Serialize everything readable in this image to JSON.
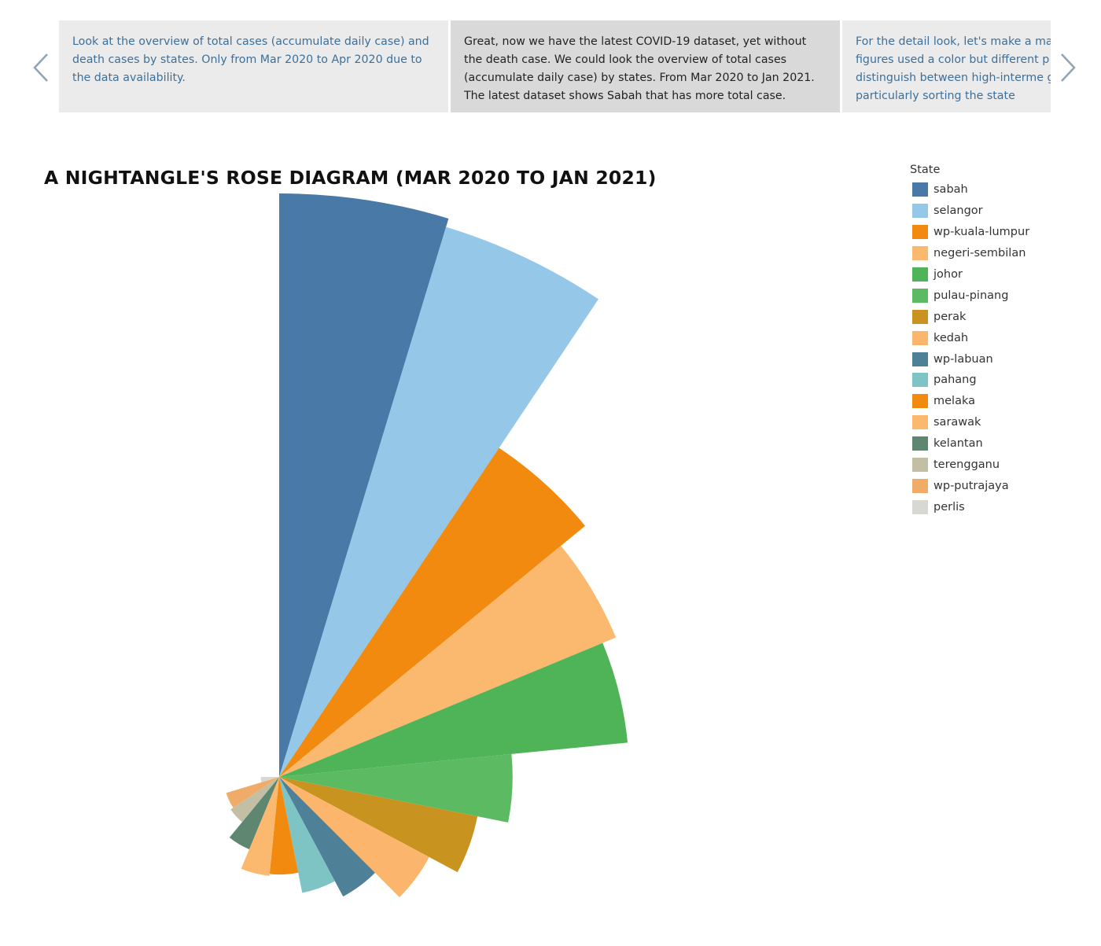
{
  "story": {
    "cards": [
      {
        "text": "Look at the overview of total cases (accumulate daily case) and death cases by states. Only from Mar 2020 to Apr 2020 due to the data availability."
      },
      {
        "text": "Great, now we have the latest COVID-19 dataset, yet without the death case. We could look the overview of total cases (accumulate daily case) by states. From Mar 2020 to Jan 2021. The latest dataset shows Sabah that has more total case."
      },
      {
        "text": "For the detail look, let's make a ma figures used a color but different p distinguish between high-interme graph particularly sorting the state"
      }
    ],
    "active_index": 1,
    "prev_icon": "chevron-left-icon",
    "next_icon": "chevron-right-icon"
  },
  "chart_data": {
    "type": "nightingale-rose",
    "title": "A NIGHTANGLE'S ROSE DIAGRAM (MAR 2020 TO JAN 2021)",
    "legend_title": "State",
    "legend_position": "right",
    "angle_start_deg": 90,
    "angle_end_deg": -180,
    "direction": "clockwise",
    "radius_scale": "sqrt",
    "radius_max_value": 100,
    "categories": [
      "sabah",
      "selangor",
      "wp-kuala-lumpur",
      "negeri-sembilan",
      "johor",
      "pulau-pinang",
      "perak",
      "kedah",
      "wp-labuan",
      "pahang",
      "melaka",
      "sarawak",
      "kelantan",
      "terengganu",
      "wp-putrajaya",
      "perlis"
    ],
    "values": [
      100,
      97,
      46,
      39,
      36,
      16,
      12,
      8.5,
      5.4,
      4.1,
      2.8,
      2.9,
      1.8,
      1.0,
      0.9,
      0.1
    ],
    "colors": [
      "#4879a7",
      "#95c8e8",
      "#f28a0f",
      "#fbb970",
      "#4fb457",
      "#5bba62",
      "#c8931f",
      "#fbb56c",
      "#4e8097",
      "#7ec4c4",
      "#f28a0f",
      "#fbb970",
      "#5e8670",
      "#c3bfa5",
      "#f0ab68",
      "#d8d8d3"
    ]
  }
}
